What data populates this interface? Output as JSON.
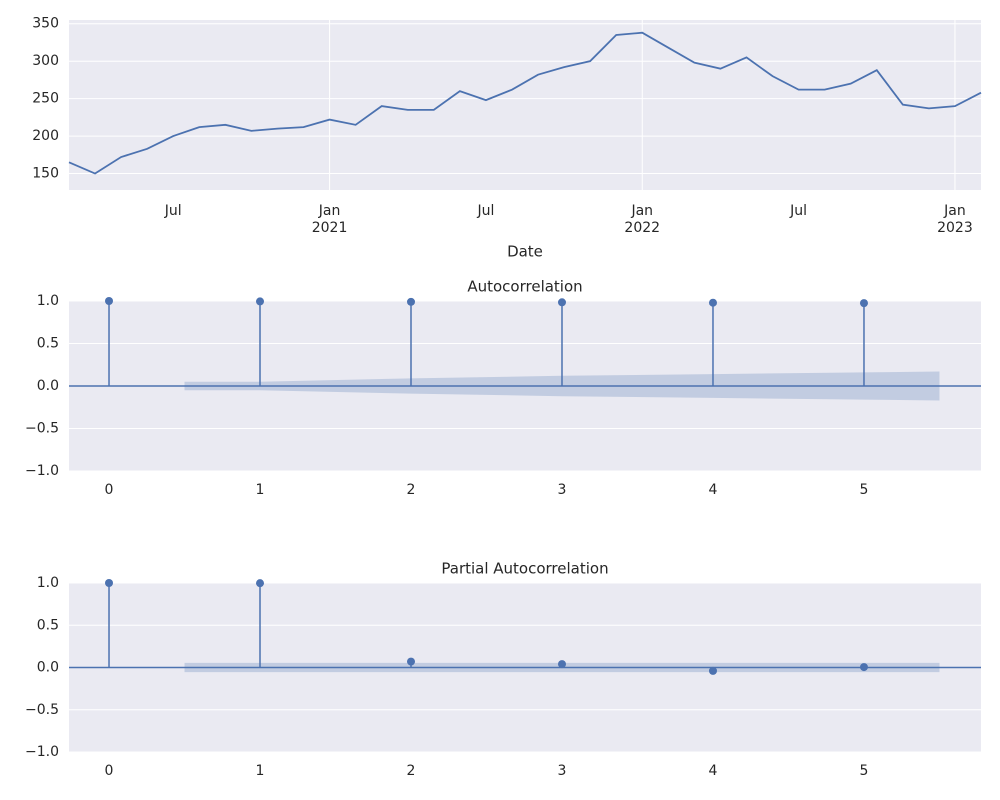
{
  "chart_data": [
    {
      "type": "line",
      "xlabel": "Date",
      "color": "#4c72b0",
      "x": [
        "2020-03",
        "2020-04",
        "2020-05",
        "2020-06",
        "2020-07",
        "2020-08",
        "2020-09",
        "2020-10",
        "2020-11",
        "2020-12",
        "2021-01",
        "2021-02",
        "2021-03",
        "2021-04",
        "2021-05",
        "2021-06",
        "2021-07",
        "2021-08",
        "2021-09",
        "2021-10",
        "2021-11",
        "2021-12",
        "2022-01",
        "2022-02",
        "2022-03",
        "2022-04",
        "2022-05",
        "2022-06",
        "2022-07",
        "2022-08",
        "2022-09",
        "2022-10",
        "2022-11",
        "2022-12",
        "2023-01",
        "2023-02"
      ],
      "values": [
        165,
        150,
        172,
        183,
        200,
        212,
        215,
        207,
        210,
        212,
        222,
        215,
        240,
        235,
        235,
        260,
        248,
        262,
        282,
        292,
        300,
        335,
        338,
        318,
        298,
        290,
        305,
        280,
        262,
        262,
        270,
        288,
        242,
        237,
        240,
        258
      ],
      "xlim": [
        "2020-03",
        "2023-02"
      ],
      "ylim": [
        128,
        355
      ],
      "yticks": [
        150,
        200,
        250,
        300,
        350
      ],
      "xticks": [
        {
          "value": "2021-01",
          "label": "Jan\n2021"
        },
        {
          "value": "2022-01",
          "label": "Jan\n2022"
        },
        {
          "value": "2023-01",
          "label": "Jan\n2023"
        }
      ],
      "xticks_minor": [
        {
          "value": "2020-07",
          "label": "Jul"
        },
        {
          "value": "2021-07",
          "label": "Jul"
        },
        {
          "value": "2022-07",
          "label": "Jul"
        }
      ],
      "grid": "both"
    },
    {
      "type": "stem",
      "title": "Autocorrelation",
      "color": "#4c72b0",
      "x": [
        0,
        1,
        2,
        3,
        4,
        5
      ],
      "values": [
        1.0,
        0.995,
        0.99,
        0.985,
        0.98,
        0.975
      ],
      "band": {
        "x": [
          0.5,
          1,
          2,
          3,
          4,
          5,
          5.5
        ],
        "upper": [
          0.05,
          0.05,
          0.09,
          0.12,
          0.14,
          0.16,
          0.17
        ],
        "lower": [
          -0.05,
          -0.05,
          -0.09,
          -0.12,
          -0.14,
          -0.16,
          -0.17
        ]
      },
      "xlim": [
        -0.265,
        5.775
      ],
      "ylim": [
        -1,
        1
      ],
      "xticks": [
        0,
        1,
        2,
        3,
        4,
        5
      ],
      "yticks": [
        {
          "value": 1,
          "label": "1.0"
        },
        {
          "value": 0.5,
          "label": "0.5"
        },
        {
          "value": 0,
          "label": "0.0"
        },
        {
          "value": -0.5,
          "label": "−0.5"
        },
        {
          "value": -1,
          "label": "−1.0"
        }
      ],
      "grid": "y"
    },
    {
      "type": "stem",
      "title": "Partial Autocorrelation",
      "color": "#4c72b0",
      "x": [
        0,
        1,
        2,
        3,
        4,
        5
      ],
      "values": [
        1.0,
        0.998,
        0.07,
        0.04,
        -0.04,
        0.005
      ],
      "band": {
        "x": [
          0.5,
          5.5
        ],
        "upper": [
          0.055,
          0.055
        ],
        "lower": [
          -0.055,
          -0.055
        ]
      },
      "xlim": [
        -0.265,
        5.775
      ],
      "ylim": [
        -1,
        1
      ],
      "xticks": [
        0,
        1,
        2,
        3,
        4,
        5
      ],
      "yticks": [
        {
          "value": 1,
          "label": "1.0"
        },
        {
          "value": 0.5,
          "label": "0.5"
        },
        {
          "value": 0,
          "label": "0.0"
        },
        {
          "value": -0.5,
          "label": "−0.5"
        },
        {
          "value": -1,
          "label": "−1.0"
        }
      ],
      "grid": "y"
    }
  ]
}
